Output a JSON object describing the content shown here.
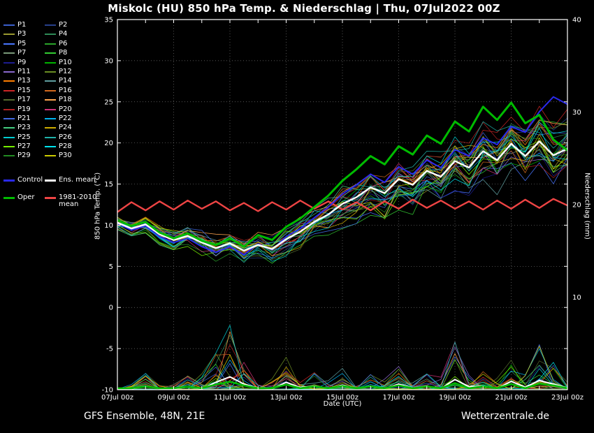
{
  "footer": {
    "left": "GFS Ensemble, 48N, 21E",
    "right": "Wetterzentrale.de"
  },
  "legend": {
    "members": [
      {
        "label": "P1",
        "color": "#3a5fcd"
      },
      {
        "label": "P2",
        "color": "#27408b"
      },
      {
        "label": "P3",
        "color": "#9a9a30"
      },
      {
        "label": "P4",
        "color": "#2e8b57"
      },
      {
        "label": "P5",
        "color": "#4876ff"
      },
      {
        "label": "P6",
        "color": "#2aa52a"
      },
      {
        "label": "P7",
        "color": "#7a9a7a"
      },
      {
        "label": "P8",
        "color": "#33cc33"
      },
      {
        "label": "P9",
        "color": "#1c1c8f"
      },
      {
        "label": "P10",
        "color": "#00b300"
      },
      {
        "label": "P11",
        "color": "#8968cd"
      },
      {
        "label": "P12",
        "color": "#6b8e23"
      },
      {
        "label": "P13",
        "color": "#ff7f00"
      },
      {
        "label": "P14",
        "color": "#5f9ea0"
      },
      {
        "label": "P15",
        "color": "#cd2626"
      },
      {
        "label": "P16",
        "color": "#d2691e"
      },
      {
        "label": "P17",
        "color": "#556b2f"
      },
      {
        "label": "P18",
        "color": "#ffa54f"
      },
      {
        "label": "P19",
        "color": "#b22222"
      },
      {
        "label": "P20",
        "color": "#cd3278"
      },
      {
        "label": "P21",
        "color": "#4169e1"
      },
      {
        "label": "P22",
        "color": "#00b2ee"
      },
      {
        "label": "P23",
        "color": "#43cd80"
      },
      {
        "label": "P24",
        "color": "#cdad00"
      },
      {
        "label": "P25",
        "color": "#00ced1"
      },
      {
        "label": "P26",
        "color": "#20b2aa"
      },
      {
        "label": "P27",
        "color": "#76ee00"
      },
      {
        "label": "P28",
        "color": "#00e5ee"
      },
      {
        "label": "P29",
        "color": "#228b22"
      },
      {
        "label": "P30",
        "color": "#cdcd00"
      }
    ],
    "control": {
      "label": "Control",
      "color": "#2a2aee"
    },
    "ens_mean": {
      "label": "Ens. mean",
      "color": "#ffffff"
    },
    "oper": {
      "label": "Oper",
      "color": "#00bb00"
    },
    "climate": {
      "label": "1981-2010 mean",
      "color": "#ee4444"
    }
  },
  "chart_data": {
    "type": "line",
    "title": "Miskolc  (HU)  850 hPa Temp. & Niederschlag | Thu, 07Jul2022 00Z",
    "xlabel": "Date (UTC)",
    "ylabel_left": "850 hPa Temp. (°C)",
    "ylabel_right": "Niederschlag (mm)",
    "x_ticks": [
      "07Jul 00z",
      "09Jul 00z",
      "11Jul 00z",
      "13Jul 00z",
      "15Jul 00z",
      "17Jul 00z",
      "19Jul 00z",
      "21Jul 00z",
      "23Jul 00z"
    ],
    "y_left": {
      "min": -10,
      "max": 35,
      "step": 5
    },
    "y_right": {
      "min": 0,
      "max": 40,
      "step": 10,
      "tick_labels": [
        10,
        20,
        30,
        40
      ]
    },
    "time_step_hours": 12,
    "n_points": 33,
    "n_members": 30,
    "series": {
      "ens_mean": [
        10.3,
        9.6,
        10.1,
        8.9,
        8.2,
        8.7,
        7.9,
        7.2,
        7.8,
        6.9,
        7.6,
        7.1,
        8.3,
        9.2,
        10.4,
        11.3,
        12.6,
        13.4,
        14.6,
        13.9,
        15.6,
        14.9,
        16.6,
        15.9,
        17.8,
        17.0,
        19.0,
        17.9,
        19.9,
        18.4,
        20.2,
        18.5,
        19.3
      ],
      "control": [
        10.2,
        9.4,
        9.9,
        8.6,
        7.9,
        8.4,
        7.4,
        6.7,
        7.4,
        6.4,
        7.7,
        7.0,
        8.6,
        9.6,
        10.9,
        12.2,
        13.8,
        14.9,
        16.2,
        15.2,
        17.1,
        16.2,
        17.9,
        17.0,
        19.2,
        18.4,
        20.6,
        19.8,
        22.0,
        21.3,
        23.8,
        25.6,
        24.7
      ],
      "oper": [
        10.6,
        9.9,
        10.4,
        9.1,
        8.4,
        9.0,
        8.1,
        7.6,
        8.4,
        7.4,
        8.8,
        8.2,
        9.8,
        10.8,
        12.2,
        13.6,
        15.4,
        16.8,
        18.4,
        17.4,
        19.6,
        18.6,
        20.9,
        19.9,
        22.6,
        21.4,
        24.4,
        22.8,
        24.9,
        22.4,
        23.4,
        20.4,
        19.1
      ],
      "climate_mean": [
        11.6,
        12.8,
        11.8,
        12.9,
        11.9,
        13.0,
        12.0,
        12.9,
        11.8,
        12.7,
        11.7,
        12.8,
        11.9,
        13.0,
        12.0,
        12.9,
        11.9,
        12.8,
        11.8,
        12.9,
        12.0,
        13.1,
        12.1,
        13.0,
        12.0,
        12.9,
        11.9,
        13.0,
        12.0,
        13.1,
        12.1,
        13.2,
        12.4
      ],
      "spread_min": [
        9.3,
        8.6,
        9.0,
        7.6,
        6.9,
        7.2,
        6.3,
        5.6,
        6.1,
        5.2,
        5.6,
        5.0,
        6.2,
        6.8,
        7.8,
        8.4,
        9.6,
        10.2,
        11.2,
        10.4,
        11.8,
        11.2,
        12.6,
        12.0,
        13.8,
        13.0,
        14.6,
        13.6,
        15.0,
        13.8,
        15.2,
        13.8,
        14.0
      ],
      "spread_max": [
        11.5,
        10.8,
        11.3,
        10.2,
        9.6,
        10.3,
        9.6,
        9.2,
        9.8,
        9.4,
        10.4,
        10.6,
        11.4,
        12.4,
        13.6,
        15.0,
        16.8,
        18.2,
        19.6,
        18.8,
        20.8,
        20.2,
        22.2,
        21.6,
        23.8,
        23.2,
        25.6,
        24.6,
        26.6,
        25.4,
        27.2,
        26.4,
        26.2
      ]
    },
    "precip_events": [
      {
        "t": 2,
        "max_mm": 2.0
      },
      {
        "t": 5,
        "max_mm": 1.5
      },
      {
        "t": 7,
        "max_mm": 4.0
      },
      {
        "t": 8,
        "max_mm": 7.0
      },
      {
        "t": 9,
        "max_mm": 3.0
      },
      {
        "t": 12,
        "max_mm": 4.0
      },
      {
        "t": 14,
        "max_mm": 2.0
      },
      {
        "t": 16,
        "max_mm": 2.5
      },
      {
        "t": 18,
        "max_mm": 2.0
      },
      {
        "t": 20,
        "max_mm": 3.0
      },
      {
        "t": 22,
        "max_mm": 2.0
      },
      {
        "t": 24,
        "max_mm": 5.5
      },
      {
        "t": 26,
        "max_mm": 2.0
      },
      {
        "t": 28,
        "max_mm": 4.5
      },
      {
        "t": 30,
        "max_mm": 5.0
      },
      {
        "t": 31,
        "max_mm": 3.0
      }
    ]
  }
}
